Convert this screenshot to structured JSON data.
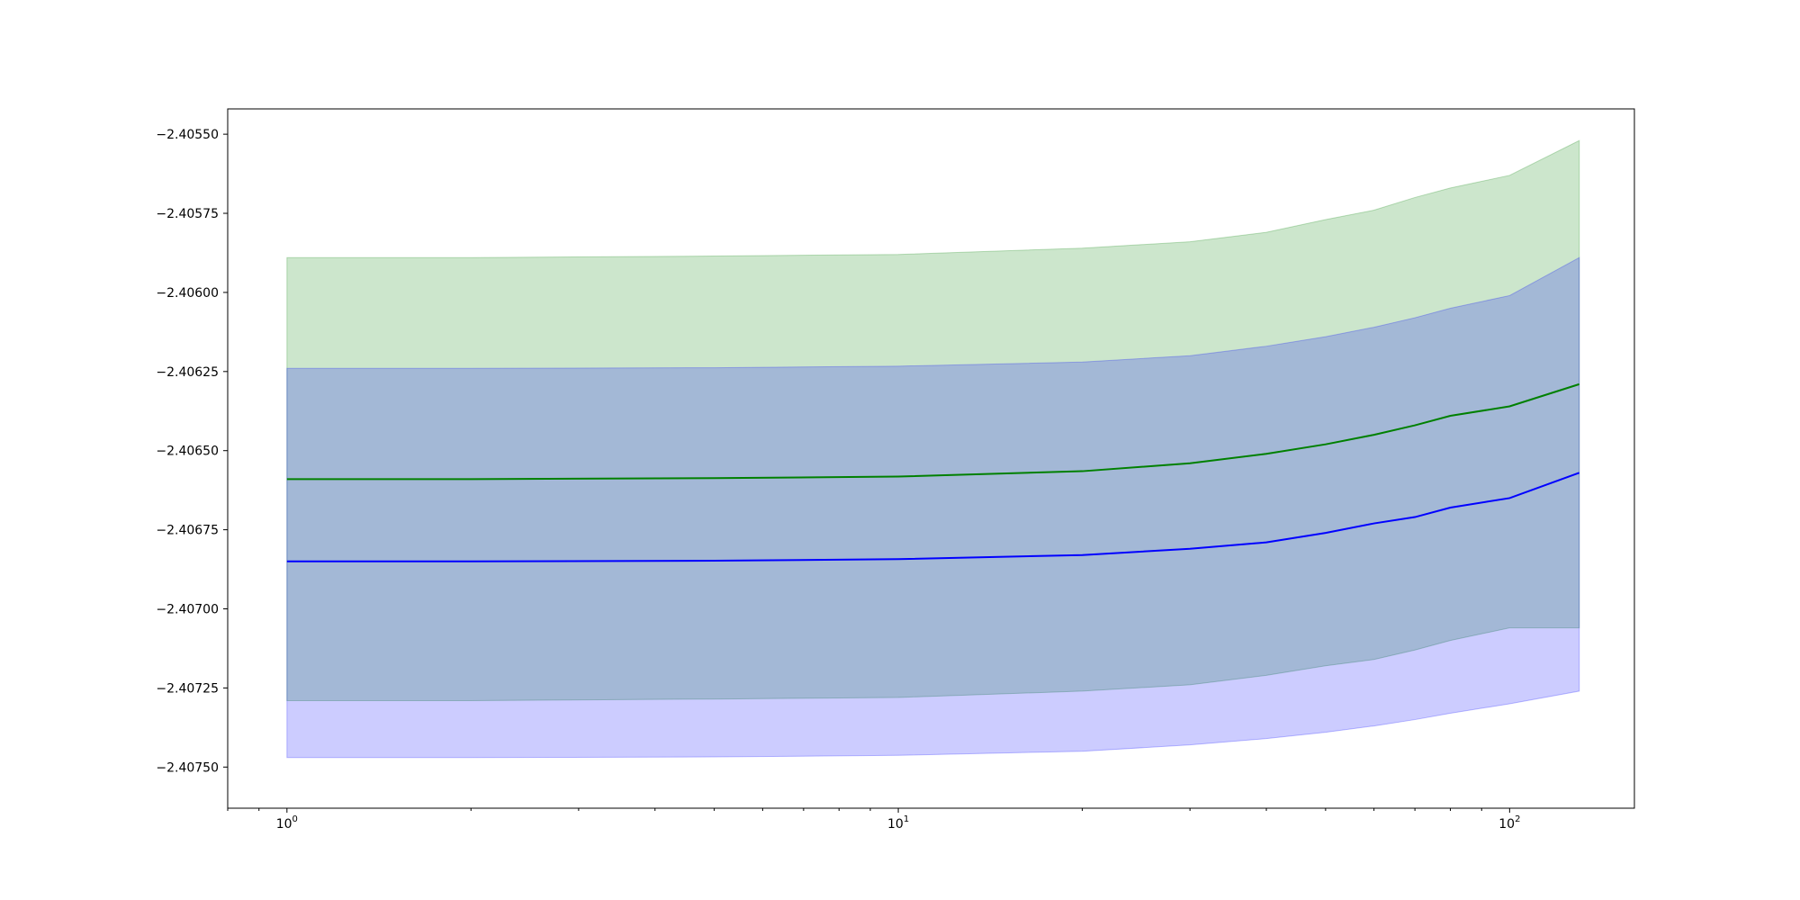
{
  "chart_data": {
    "type": "area",
    "title": "",
    "xlabel": "",
    "ylabel": "",
    "xscale": "log",
    "xlim": [
      0.8,
      160
    ],
    "ylim": [
      -2.40763,
      -2.40542
    ],
    "grid": false,
    "legend": "none",
    "x": [
      1,
      2,
      5,
      10,
      20,
      30,
      40,
      50,
      60,
      70,
      80,
      100,
      130
    ],
    "series": [
      {
        "color": "#008000",
        "band_color": "#008000",
        "band_opacity": 0.2,
        "values": [
          -2.40659,
          -2.40659,
          -2.406587,
          -2.406582,
          -2.406565,
          -2.40654,
          -2.40651,
          -2.40648,
          -2.40645,
          -2.40642,
          -2.40639,
          -2.40636,
          -2.40629
        ],
        "upper": [
          -2.40589,
          -2.40589,
          -2.405885,
          -2.40588,
          -2.40586,
          -2.40584,
          -2.40581,
          -2.40577,
          -2.40574,
          -2.4057,
          -2.40567,
          -2.40563,
          -2.40552
        ],
        "lower": [
          -2.40729,
          -2.40729,
          -2.407285,
          -2.40728,
          -2.40726,
          -2.40724,
          -2.40721,
          -2.40718,
          -2.40716,
          -2.40713,
          -2.4071,
          -2.40706,
          -2.40706
        ]
      },
      {
        "color": "#0000ff",
        "band_color": "#0000ff",
        "band_opacity": 0.2,
        "values": [
          -2.40685,
          -2.40685,
          -2.406848,
          -2.406843,
          -2.40683,
          -2.40681,
          -2.40679,
          -2.40676,
          -2.40673,
          -2.40671,
          -2.40668,
          -2.40665,
          -2.40657
        ],
        "upper": [
          -2.40624,
          -2.40624,
          -2.406238,
          -2.406233,
          -2.40622,
          -2.4062,
          -2.40617,
          -2.40614,
          -2.40611,
          -2.40608,
          -2.40605,
          -2.40601,
          -2.40589
        ],
        "lower": [
          -2.40747,
          -2.40747,
          -2.407468,
          -2.407463,
          -2.40745,
          -2.40743,
          -2.40741,
          -2.40739,
          -2.40737,
          -2.40735,
          -2.40733,
          -2.4073,
          -2.40726
        ]
      }
    ],
    "x_ticks": [
      {
        "value": 1,
        "base": "10",
        "exp": "0"
      },
      {
        "value": 10,
        "base": "10",
        "exp": "1"
      },
      {
        "value": 100,
        "base": "10",
        "exp": "2"
      }
    ],
    "y_ticks": [
      {
        "value": -2.4055,
        "label": "−2.40550"
      },
      {
        "value": -2.40575,
        "label": "−2.40575"
      },
      {
        "value": -2.406,
        "label": "−2.40600"
      },
      {
        "value": -2.40625,
        "label": "−2.40625"
      },
      {
        "value": -2.4065,
        "label": "−2.40650"
      },
      {
        "value": -2.40675,
        "label": "−2.40675"
      },
      {
        "value": -2.407,
        "label": "−2.40700"
      },
      {
        "value": -2.40725,
        "label": "−2.40725"
      },
      {
        "value": -2.4075,
        "label": "−2.40750"
      }
    ]
  }
}
